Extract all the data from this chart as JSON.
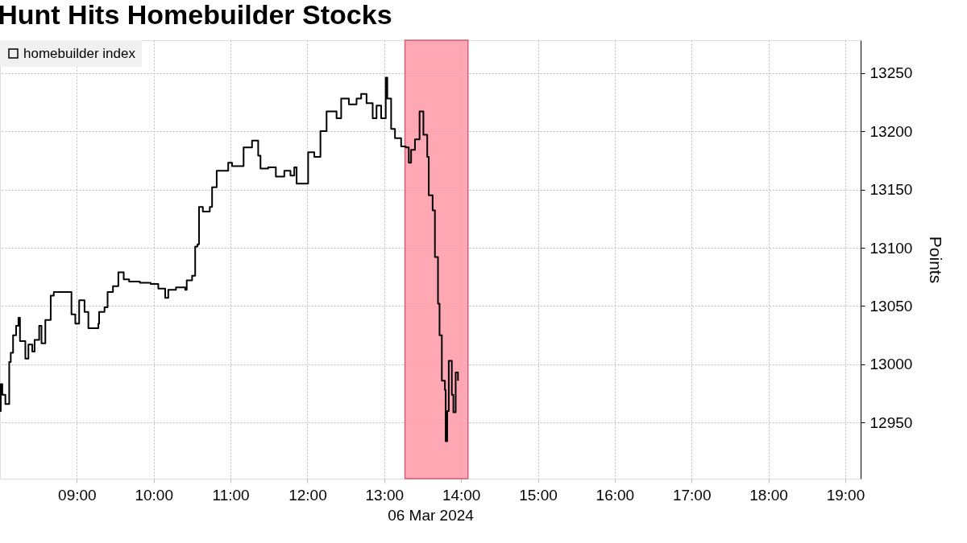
{
  "chart_data": {
    "type": "step",
    "title": "Hunt Hits Homebuilder Stocks",
    "xlabel": "06 Mar 2024",
    "ylabel": "Points",
    "series": [
      {
        "name": "homebuilder index",
        "color": "#000000",
        "x": [
          8.0,
          8.01,
          8.03,
          8.07,
          8.12,
          8.14,
          8.17,
          8.21,
          8.24,
          8.26,
          8.33,
          8.37,
          8.42,
          8.45,
          8.51,
          8.54,
          8.59,
          8.65,
          8.66,
          8.7,
          8.8,
          8.89,
          8.93,
          8.98,
          9.03,
          9.1,
          9.15,
          9.28,
          9.29,
          9.36,
          9.4,
          9.47,
          9.54,
          9.61,
          9.68,
          9.82,
          9.96,
          10.06,
          10.15,
          10.19,
          10.29,
          10.41,
          10.43,
          10.5,
          10.54,
          10.57,
          10.59,
          10.64,
          10.73,
          10.76,
          10.82,
          10.91,
          10.97,
          11.02,
          11.17,
          11.28,
          11.36,
          11.39,
          11.49,
          11.59,
          11.7,
          11.78,
          11.83,
          11.86,
          11.96,
          12.01,
          12.09,
          12.17,
          12.25,
          12.38,
          12.44,
          12.54,
          12.64,
          12.7,
          12.77,
          12.85,
          12.9,
          12.96,
          13.02,
          13.04,
          13.09,
          13.14,
          13.22,
          13.28,
          13.32,
          13.35,
          13.4,
          13.46,
          13.51,
          13.56,
          13.58,
          13.63,
          13.66,
          13.7,
          13.72,
          13.75,
          13.79,
          13.8,
          13.82,
          13.84,
          13.88,
          13.9,
          13.93,
          13.96
        ],
        "values": [
          12960,
          12983,
          12974,
          12966,
          13002,
          13010,
          13025,
          13033,
          13040,
          13020,
          13005,
          13017,
          13011,
          13021,
          13033,
          13018,
          13038,
          13038,
          13059,
          13062,
          13062,
          13062,
          13043,
          13035,
          13055,
          13045,
          13031,
          13035,
          13045,
          13049,
          13062,
          13067,
          13079,
          13073,
          13071,
          13070,
          13069,
          13065,
          13057,
          13064,
          13066,
          13064,
          13072,
          13076,
          13101,
          13103,
          13135,
          13131,
          13135,
          13152,
          13166,
          13166,
          13173,
          13170,
          13186,
          13192,
          13179,
          13168,
          13169,
          13161,
          13166,
          13162,
          13169,
          13155,
          13155,
          13182,
          13178,
          13200,
          13217,
          13211,
          13228,
          13223,
          13228,
          13232,
          13224,
          13211,
          13222,
          13211,
          13246,
          13228,
          13202,
          13194,
          13187,
          13186,
          13173,
          13184,
          13193,
          13217,
          13197,
          13178,
          13145,
          13132,
          13092,
          13052,
          13025,
          12986,
          12978,
          12934,
          12960,
          13003,
          12974,
          12959,
          12993,
          12986
        ]
      }
    ],
    "xlim": [
      8.0,
      19.2
    ],
    "xticks": [
      {
        "value": 9,
        "label": "09:00"
      },
      {
        "value": 10,
        "label": "10:00"
      },
      {
        "value": 11,
        "label": "11:00"
      },
      {
        "value": 12,
        "label": "12:00"
      },
      {
        "value": 13,
        "label": "13:00"
      },
      {
        "value": 14,
        "label": "14:00"
      },
      {
        "value": 15,
        "label": "15:00"
      },
      {
        "value": 16,
        "label": "16:00"
      },
      {
        "value": 17,
        "label": "17:00"
      },
      {
        "value": 18,
        "label": "18:00"
      },
      {
        "value": 19,
        "label": "19:00"
      }
    ],
    "ylim": [
      12902,
      13278
    ],
    "yticks": [
      12950,
      13000,
      13050,
      13100,
      13150,
      13200,
      13250
    ],
    "bands": [
      {
        "axis": "x",
        "from": 13.27,
        "to": 14.09,
        "color": "#ff9aa8"
      }
    ],
    "grid": true,
    "legend": "top left",
    "line_style": "solid",
    "marker": "none"
  }
}
